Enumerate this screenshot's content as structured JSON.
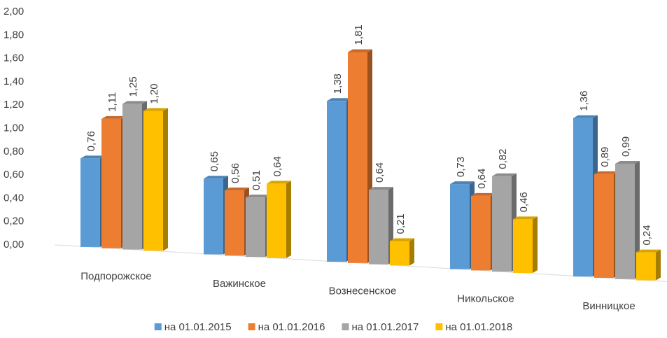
{
  "chart_data": {
    "type": "bar3d",
    "categories": [
      "Подпорожское",
      "Важинское",
      "Вознесенское",
      "Никольское",
      "Винницкое"
    ],
    "series": [
      {
        "name": "на 01.01.2015",
        "color": "#5b9bd5",
        "values": [
          0.76,
          0.65,
          1.38,
          0.73,
          1.36
        ],
        "value_labels": [
          "0,76",
          "0,65",
          "1,38",
          "0,73",
          "1,36"
        ]
      },
      {
        "name": "на 01.01.2016",
        "color": "#ed7d31",
        "values": [
          1.11,
          0.56,
          1.81,
          0.64,
          0.89
        ],
        "value_labels": [
          "1,11",
          "0,56",
          "1,81",
          "0,64",
          "0,89"
        ]
      },
      {
        "name": "на 01.01.2017",
        "color": "#a5a5a5",
        "values": [
          1.25,
          0.51,
          0.64,
          0.82,
          0.99
        ],
        "value_labels": [
          "1,25",
          "0,51",
          "0,64",
          "0,82",
          "0,99"
        ]
      },
      {
        "name": "на 01.01.2018",
        "color": "#ffc000",
        "values": [
          1.2,
          0.64,
          0.21,
          0.46,
          0.24
        ],
        "value_labels": [
          "1,20",
          "0,64",
          "0,21",
          "0,46",
          "0,24"
        ]
      }
    ],
    "ylim": [
      0,
      2
    ],
    "yticks": [
      {
        "value": 0,
        "label": "0,00"
      },
      {
        "value": 0.2,
        "label": "0,20"
      },
      {
        "value": 0.4,
        "label": "0,40"
      },
      {
        "value": 0.6,
        "label": "0,60"
      },
      {
        "value": 0.8,
        "label": "0,80"
      },
      {
        "value": 1,
        "label": "1,00"
      },
      {
        "value": 1.2,
        "label": "1,20"
      },
      {
        "value": 1.4,
        "label": "1,40"
      },
      {
        "value": 1.6,
        "label": "1,60"
      },
      {
        "value": 1.8,
        "label": "1,80"
      },
      {
        "value": 2,
        "label": "2,00"
      }
    ],
    "legend": "bottom"
  }
}
